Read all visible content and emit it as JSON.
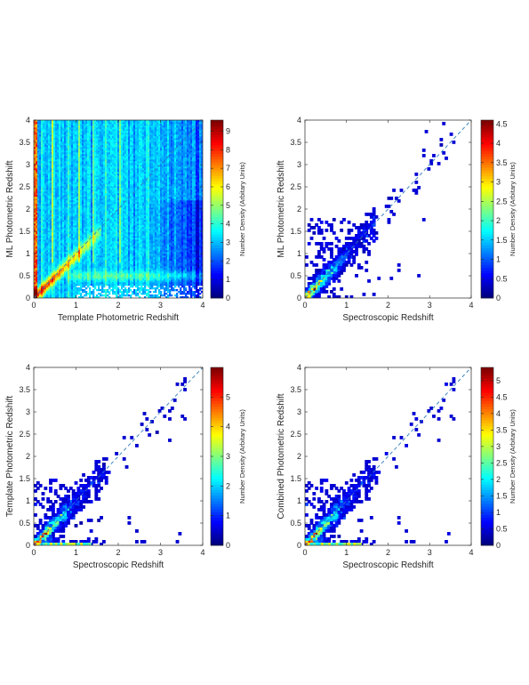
{
  "chart_data": [
    {
      "type": "heatmap",
      "panel": "top-left",
      "xlabel": "Template Photometric Redshift",
      "ylabel": "ML Photometric Redshift",
      "xlim": [
        0,
        4
      ],
      "ylim": [
        0,
        4
      ],
      "x_ticks": [
        0,
        1,
        2,
        3,
        4
      ],
      "y_ticks": [
        0,
        0.5,
        1,
        1.5,
        2,
        2.5,
        3,
        3.5,
        4
      ],
      "y_tick_labels": [
        "0",
        "0.5",
        "1",
        "1.5",
        "2",
        "2.5",
        "3",
        "3.5",
        "4"
      ],
      "reference_line": {
        "style": "dashed",
        "from": [
          0,
          0
        ],
        "to": [
          4,
          4
        ]
      },
      "colorbar": {
        "label": "Number Density (Arbitary Units)",
        "range": [
          0,
          9.6
        ],
        "ticks": [
          0,
          1,
          2,
          3,
          4,
          5,
          6,
          7,
          8,
          9
        ],
        "tick_labels": [
          "0",
          "1",
          "2",
          "3",
          "4",
          "5",
          "6",
          "7",
          "8",
          "9"
        ]
      },
      "description_values": {
        "background_density": 2.8,
        "peak_density": 9.3,
        "high_density_ridge": [
          [
            0.1,
            0.1
          ],
          [
            0.5,
            0.5
          ],
          [
            0.9,
            0.9
          ],
          [
            1.3,
            1.2
          ]
        ],
        "secondary_ridge_y": 0.5
      }
    },
    {
      "type": "heatmap",
      "panel": "top-right",
      "xlabel": "Spectroscopic Redshift",
      "ylabel": "ML Photometric Redshift",
      "xlim": [
        0,
        4
      ],
      "ylim": [
        0,
        4
      ],
      "x_ticks": [
        0,
        1,
        2,
        3,
        4
      ],
      "y_ticks": [
        0,
        0.5,
        1,
        1.5,
        2,
        2.5,
        3,
        3.5,
        4
      ],
      "y_tick_labels": [
        "0",
        "0.5",
        "1",
        "1.5",
        "2",
        "2.5",
        "3",
        "3.5",
        "4"
      ],
      "reference_line": {
        "style": "dashed",
        "from": [
          0,
          0
        ],
        "to": [
          4,
          4
        ]
      },
      "colorbar": {
        "label": "Number Density (Arbitary Units)",
        "range": [
          0,
          4.6
        ],
        "ticks": [
          0,
          0.5,
          1,
          1.5,
          2,
          2.5,
          3,
          3.5,
          4,
          4.5
        ],
        "tick_labels": [
          "0",
          "0.5",
          "1",
          "1.5",
          "2",
          "2.5",
          "3",
          "3.5",
          "4",
          "4.5"
        ]
      },
      "description_values": {
        "peak_density": 4.5,
        "peak_location": [
          0.35,
          0.35
        ]
      }
    },
    {
      "type": "heatmap",
      "panel": "bottom-left",
      "xlabel": "Spectroscopic Redshift",
      "ylabel": "Template Photometric Redshift",
      "xlim": [
        0,
        4
      ],
      "ylim": [
        0,
        4
      ],
      "x_ticks": [
        0,
        1,
        2,
        3,
        4
      ],
      "y_ticks": [
        0,
        0.5,
        1,
        1.5,
        2,
        2.5,
        3,
        3.5,
        4
      ],
      "y_tick_labels": [
        "0",
        "0.5",
        "1",
        "1.5",
        "2",
        "2.5",
        "3",
        "3.5",
        "4"
      ],
      "reference_line": {
        "style": "dashed",
        "from": [
          0,
          0
        ],
        "to": [
          4,
          4
        ]
      },
      "colorbar": {
        "label": "Number Density (Arbitary Units)",
        "range": [
          0,
          6
        ],
        "ticks": [
          0,
          1,
          2,
          3,
          4,
          5
        ],
        "tick_labels": [
          "0",
          "1",
          "2",
          "3",
          "4",
          "5"
        ]
      },
      "description_values": {
        "peak_density": 5.5,
        "peak_location": [
          0.3,
          0.3
        ]
      }
    },
    {
      "type": "heatmap",
      "panel": "bottom-right",
      "xlabel": "Spectroscopic Redshift",
      "ylabel": "Combined Photometric Redshift",
      "xlim": [
        0,
        4
      ],
      "ylim": [
        0,
        4
      ],
      "x_ticks": [
        0,
        1,
        2,
        3,
        4
      ],
      "y_ticks": [
        0,
        0.5,
        1,
        1.5,
        2,
        2.5,
        3,
        3.5,
        4
      ],
      "y_tick_labels": [
        "0",
        "0.5",
        "1",
        "1.5",
        "2",
        "2.5",
        "3",
        "3.5",
        "4"
      ],
      "reference_line": {
        "style": "dashed",
        "from": [
          0,
          0
        ],
        "to": [
          4,
          4
        ]
      },
      "colorbar": {
        "label": "Number Density (Arbitary Units)",
        "range": [
          0,
          5.4
        ],
        "ticks": [
          0,
          0.5,
          1,
          1.5,
          2,
          2.5,
          3,
          3.5,
          4,
          4.5,
          5
        ],
        "tick_labels": [
          "0",
          "0.5",
          "1",
          "1.5",
          "2",
          "2.5",
          "3",
          "3.5",
          "4",
          "4.5",
          "5"
        ]
      },
      "description_values": {
        "peak_density": 5.2,
        "peak_location": [
          0.3,
          0.3
        ]
      }
    }
  ]
}
